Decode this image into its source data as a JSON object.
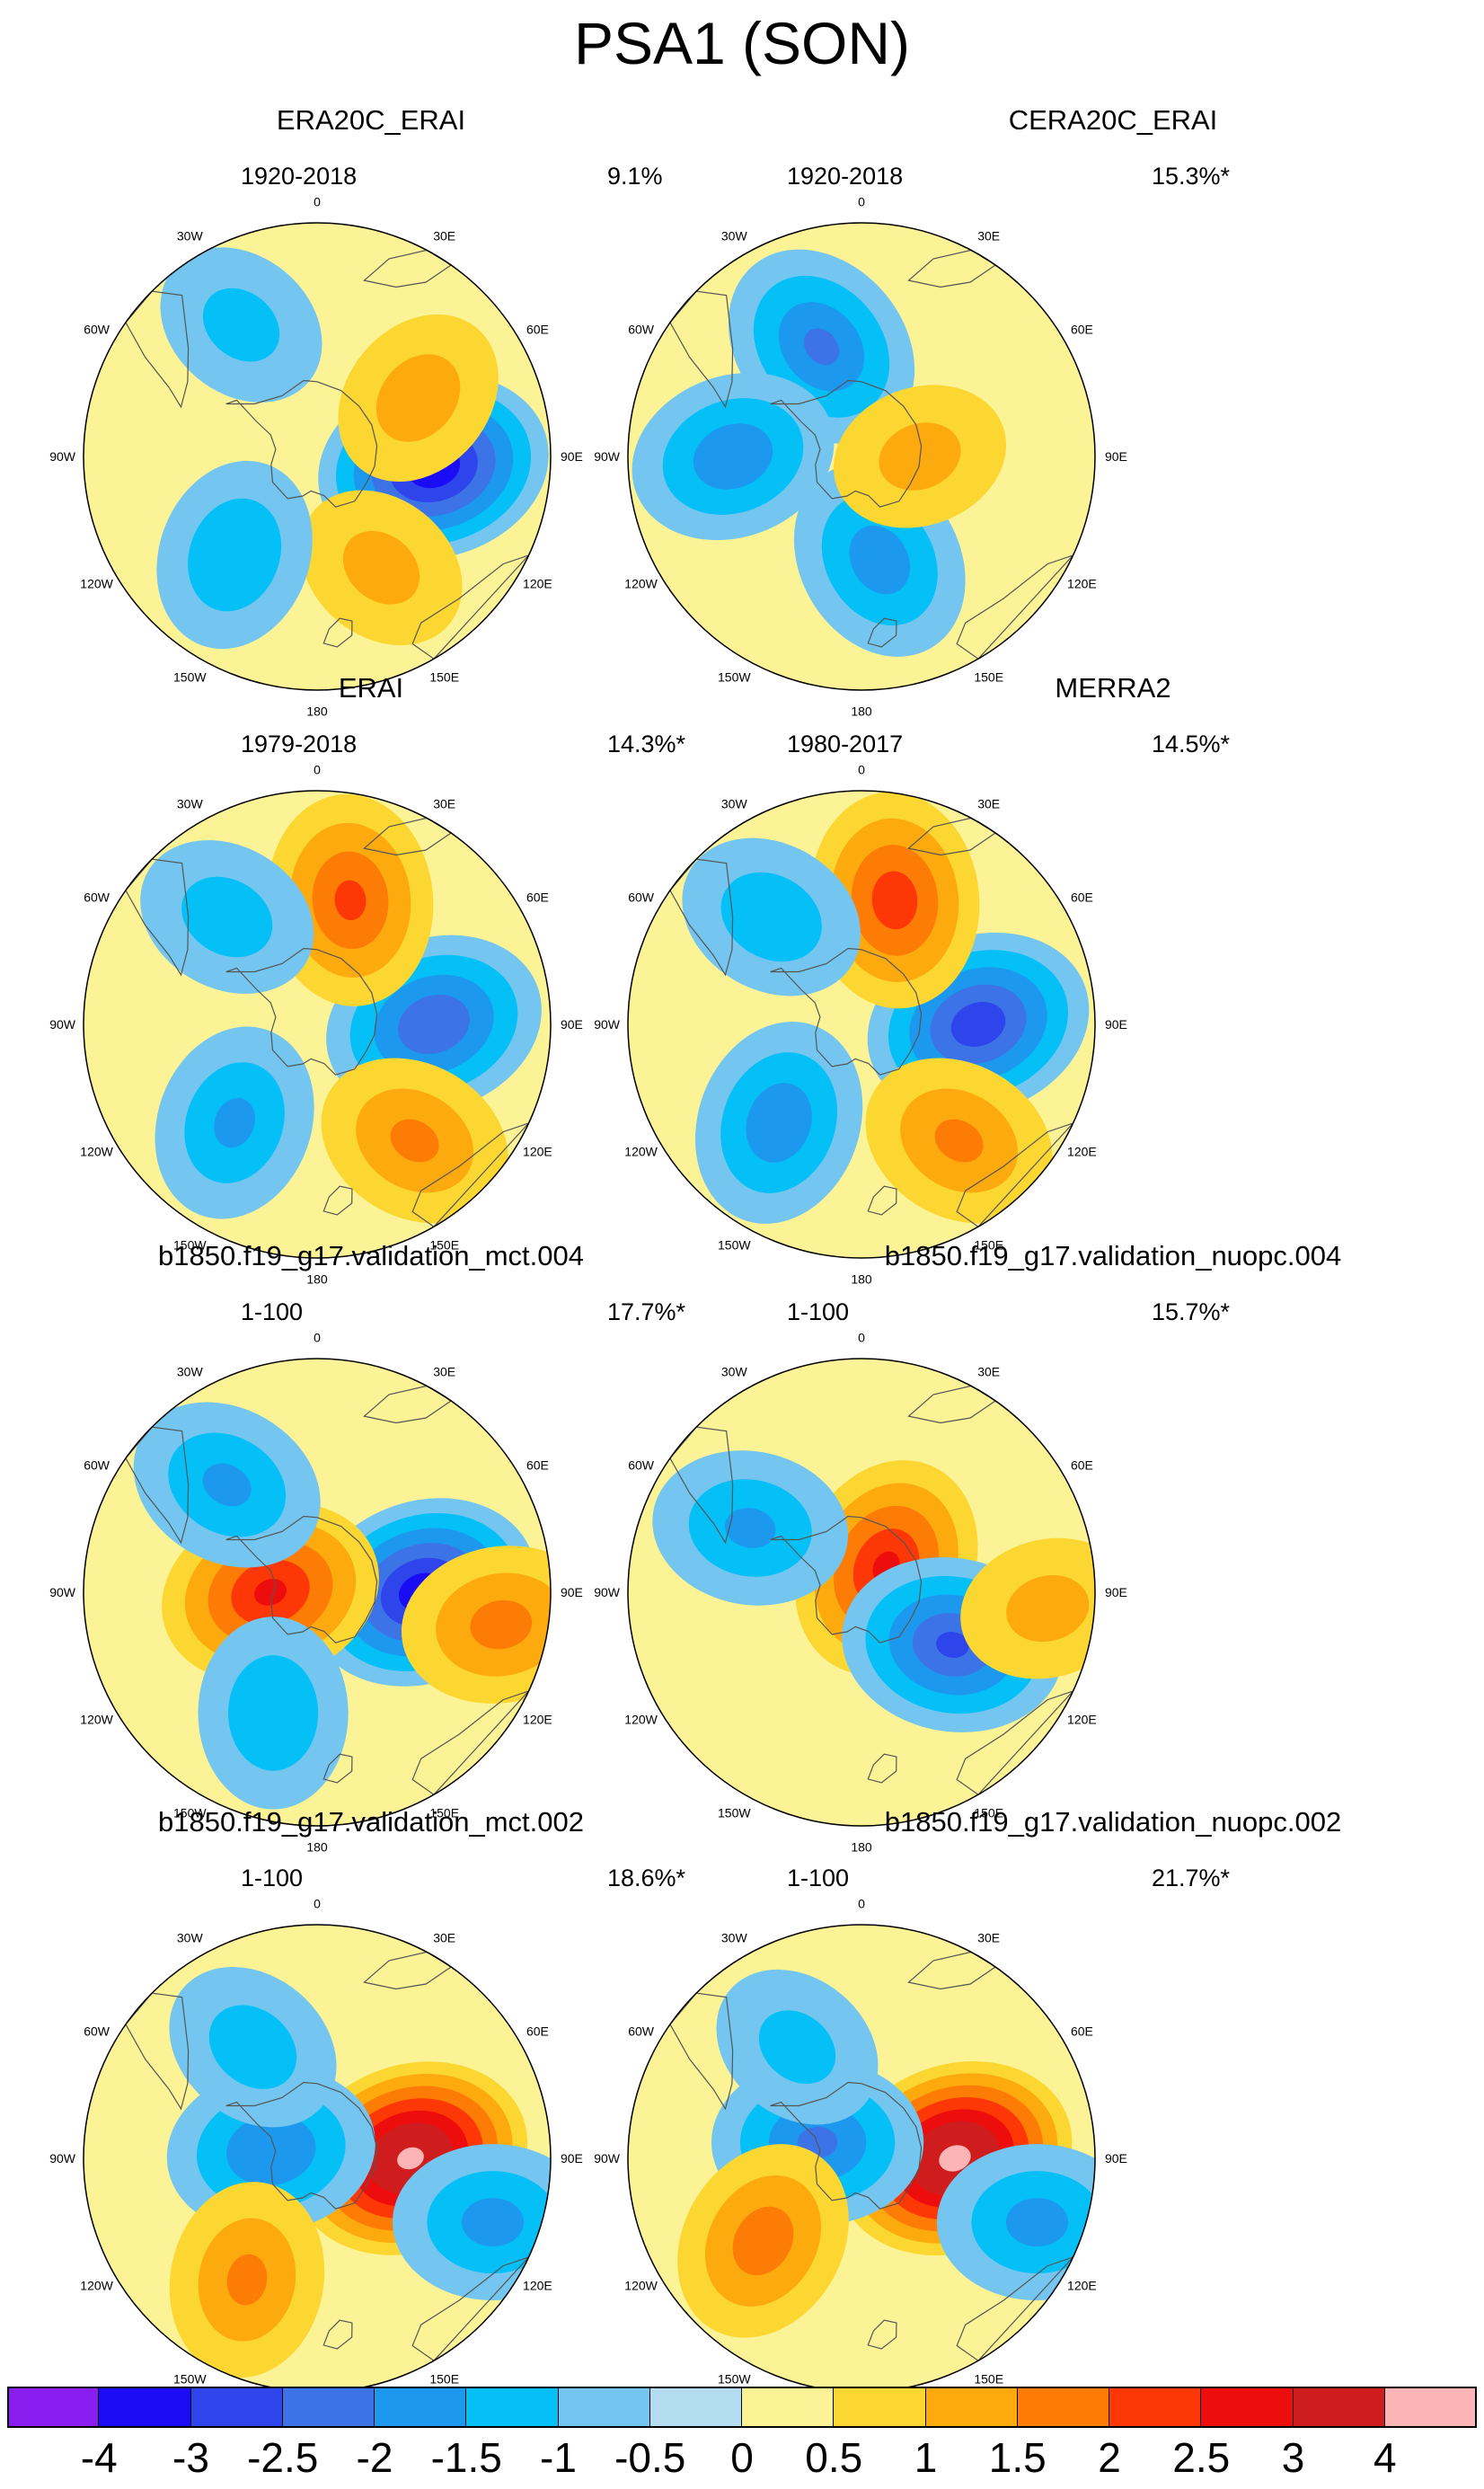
{
  "figure": {
    "title": "PSA1 (SON)"
  },
  "chart_data": {
    "type": "heatmap",
    "projection": "south-polar-stereographic",
    "variable_units": "",
    "levels": [
      "-4",
      "-3",
      "-2.5",
      "-2",
      "-1.5",
      "-1",
      "-0.5",
      "0",
      "0.5",
      "1",
      "1.5",
      "2",
      "2.5",
      "3",
      "4"
    ],
    "colors": [
      "#8a1ef0",
      "#1a0cf5",
      "#2d45eb",
      "#3c74e8",
      "#1c99ee",
      "#05c0f6",
      "#74c6f0",
      "#b3dcf0",
      "#fbf396",
      "#fcd732",
      "#fdaa0e",
      "#fd7c06",
      "#fe3706",
      "#ee0d0d",
      "#cf1c1c",
      "#fdb4b4"
    ],
    "longitude_labels": [
      "0",
      "30E",
      "60E",
      "90E",
      "120E",
      "150E",
      "180",
      "150W",
      "120W",
      "90W",
      "60W",
      "30W"
    ],
    "panels": [
      {
        "title": "ERA20C_ERAI",
        "period": "1920-2018",
        "variance_explained": "9.1%",
        "features": [
          {
            "type": "low",
            "lon": 95,
            "colat": 0.5,
            "peak": -3.5
          },
          {
            "type": "high",
            "lon": 150,
            "colat": 0.55,
            "peak": 1.2
          },
          {
            "type": "high",
            "lon": 60,
            "colat": 0.5,
            "peak": 1.3
          },
          {
            "type": "low",
            "lon": 220,
            "colat": 0.55,
            "peak": -1.5
          },
          {
            "type": "low",
            "lon": 330,
            "colat": 0.65,
            "peak": -1.2
          }
        ]
      },
      {
        "title": "CERA20C_ERAI",
        "period": "1920-2018",
        "variance_explained": "15.3%*",
        "features": [
          {
            "type": "low",
            "lon": 340,
            "colat": 0.5,
            "peak": -2.1
          },
          {
            "type": "low",
            "lon": 270,
            "colat": 0.55,
            "peak": -1.9
          },
          {
            "type": "low",
            "lon": 170,
            "colat": 0.45,
            "peak": -1.8
          },
          {
            "type": "high",
            "lon": 90,
            "colat": 0.25,
            "peak": 1.2
          }
        ]
      },
      {
        "title": "ERAI",
        "period": "1979-2018",
        "variance_explained": "14.3%*",
        "features": [
          {
            "type": "low",
            "lon": 90,
            "colat": 0.5,
            "peak": -2.5
          },
          {
            "type": "high",
            "lon": 15,
            "colat": 0.55,
            "peak": 2.1
          },
          {
            "type": "high",
            "lon": 140,
            "colat": 0.65,
            "peak": 1.6
          },
          {
            "type": "low",
            "lon": 220,
            "colat": 0.55,
            "peak": -1.6
          },
          {
            "type": "low",
            "lon": 320,
            "colat": 0.6,
            "peak": -1.3
          }
        ]
      },
      {
        "title": "MERRA2",
        "period": "1980-2017",
        "variance_explained": "14.5%*",
        "features": [
          {
            "type": "low",
            "lon": 90,
            "colat": 0.5,
            "peak": -2.9
          },
          {
            "type": "high",
            "lon": 15,
            "colat": 0.55,
            "peak": 2.3
          },
          {
            "type": "high",
            "lon": 140,
            "colat": 0.65,
            "peak": 1.6
          },
          {
            "type": "low",
            "lon": 220,
            "colat": 0.55,
            "peak": -1.9
          },
          {
            "type": "low",
            "lon": 320,
            "colat": 0.6,
            "peak": -1.4
          }
        ]
      },
      {
        "title": "b1850.f19_g17.validation_mct.004",
        "period": "1-100",
        "variance_explained": "17.7%*",
        "features": [
          {
            "type": "low",
            "lon": 90,
            "colat": 0.45,
            "peak": -3.4
          },
          {
            "type": "high",
            "lon": 270,
            "colat": 0.2,
            "peak": 2.6
          },
          {
            "type": "high",
            "lon": 100,
            "colat": 0.8,
            "peak": 1.7
          },
          {
            "type": "low",
            "lon": 320,
            "colat": 0.6,
            "peak": -1.6
          },
          {
            "type": "low",
            "lon": 200,
            "colat": 0.55,
            "peak": -1.5
          }
        ]
      },
      {
        "title": "b1850.f19_g17.validation_nuopc.004",
        "period": "1-100",
        "variance_explained": "15.7%*",
        "features": [
          {
            "type": "high",
            "lon": 45,
            "colat": 0.15,
            "peak": 2.6
          },
          {
            "type": "low",
            "lon": 120,
            "colat": 0.45,
            "peak": -2.6
          },
          {
            "type": "low",
            "lon": 300,
            "colat": 0.55,
            "peak": -1.6
          },
          {
            "type": "high",
            "lon": 95,
            "colat": 0.8,
            "peak": 1.2
          }
        ]
      },
      {
        "title": "b1850.f19_g17.validation_mct.002",
        "period": "1-100",
        "variance_explained": "18.6%*",
        "features": [
          {
            "type": "high",
            "lon": 90,
            "colat": 0.4,
            "peak": 4.2
          },
          {
            "type": "low",
            "lon": 280,
            "colat": 0.2,
            "peak": -2.0
          },
          {
            "type": "low",
            "lon": 110,
            "colat": 0.8,
            "peak": -1.7
          },
          {
            "type": "high",
            "lon": 210,
            "colat": 0.6,
            "peak": 1.6
          },
          {
            "type": "low",
            "lon": 330,
            "colat": 0.55,
            "peak": -1.3
          }
        ]
      },
      {
        "title": "b1850.f19_g17.validation_nuopc.002",
        "period": "1-100",
        "variance_explained": "21.7%*",
        "features": [
          {
            "type": "high",
            "lon": 90,
            "colat": 0.4,
            "peak": 4.3
          },
          {
            "type": "low",
            "lon": 290,
            "colat": 0.2,
            "peak": -2.1
          },
          {
            "type": "low",
            "lon": 110,
            "colat": 0.8,
            "peak": -1.7
          },
          {
            "type": "high",
            "lon": 230,
            "colat": 0.55,
            "peak": 1.8
          },
          {
            "type": "low",
            "lon": 330,
            "colat": 0.55,
            "peak": -1.2
          }
        ]
      }
    ]
  }
}
